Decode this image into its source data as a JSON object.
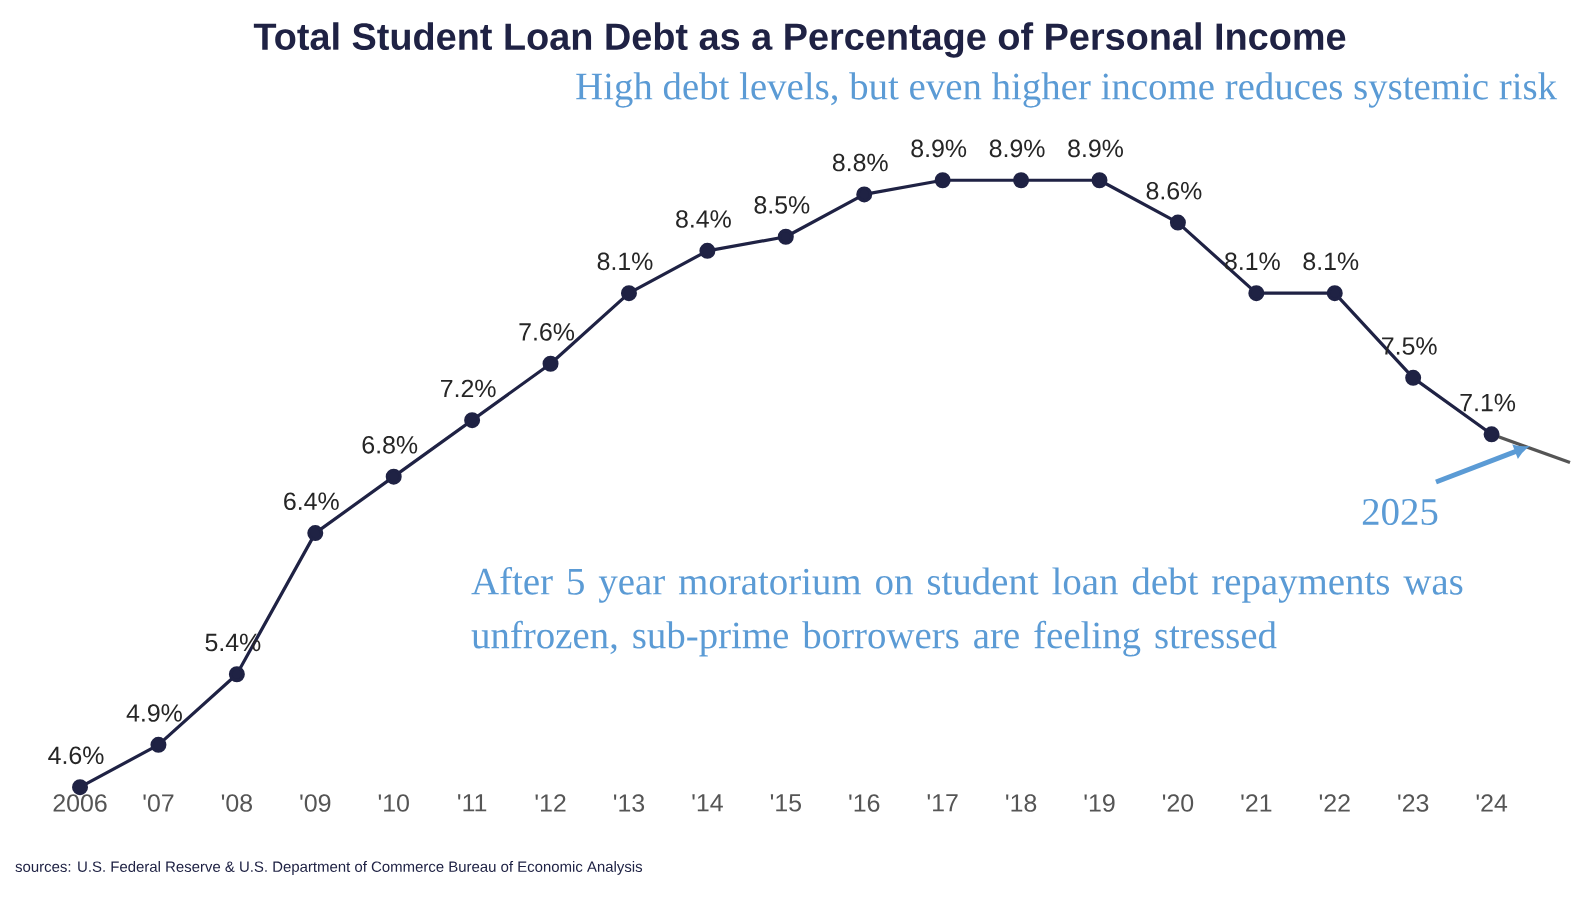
{
  "chart_data": {
    "type": "line",
    "title": "Total Student Loan Debt as a Percentage of Personal Income",
    "subtitle": "High debt levels, but even higher income reduces systemic risk",
    "categories": [
      "2006",
      "'07",
      "'08",
      "'09",
      "'10",
      "'11",
      "'12",
      "'13",
      "'14",
      "'15",
      "'16",
      "'17",
      "'18",
      "'19",
      "'20",
      "'21",
      "'22",
      "'23",
      "'24",
      null
    ],
    "series": [
      {
        "color": "#1f2244",
        "marker": "circle",
        "values": [
          4.6,
          4.9,
          5.4,
          6.4,
          6.8,
          7.2,
          7.6,
          8.1,
          8.4,
          8.5,
          8.8,
          8.9,
          8.9,
          8.9,
          8.6,
          8.1,
          8.1,
          7.5,
          7.1,
          null
        ],
        "value_labels": [
          "4.6%",
          "4.9%",
          "5.4%",
          "6.4%",
          "6.8%",
          "7.2%",
          "7.6%",
          "8.1%",
          "8.4%",
          "8.5%",
          "8.8%",
          "8.9%",
          "8.9%",
          "8.9%",
          "8.6%",
          "8.1%",
          "8.1%",
          "7.5%",
          "7.1%",
          null
        ]
      },
      {
        "color": "#555555",
        "marker": "none",
        "values": [
          null,
          null,
          null,
          null,
          null,
          null,
          null,
          null,
          null,
          null,
          null,
          null,
          null,
          null,
          null,
          null,
          null,
          null,
          7.1,
          6.9
        ]
      }
    ],
    "tick_labels": "x",
    "grid": false,
    "line_style": "solid",
    "annotations": [
      "After 5 year moratorium on student loan debt repayments was unfrozen, sub-prime borrowers are feeling stressed",
      "2025",
      "sources: U.S. Federal Reserve & U.S. Department of Commerce Bureau of Economic Analysis"
    ]
  }
}
